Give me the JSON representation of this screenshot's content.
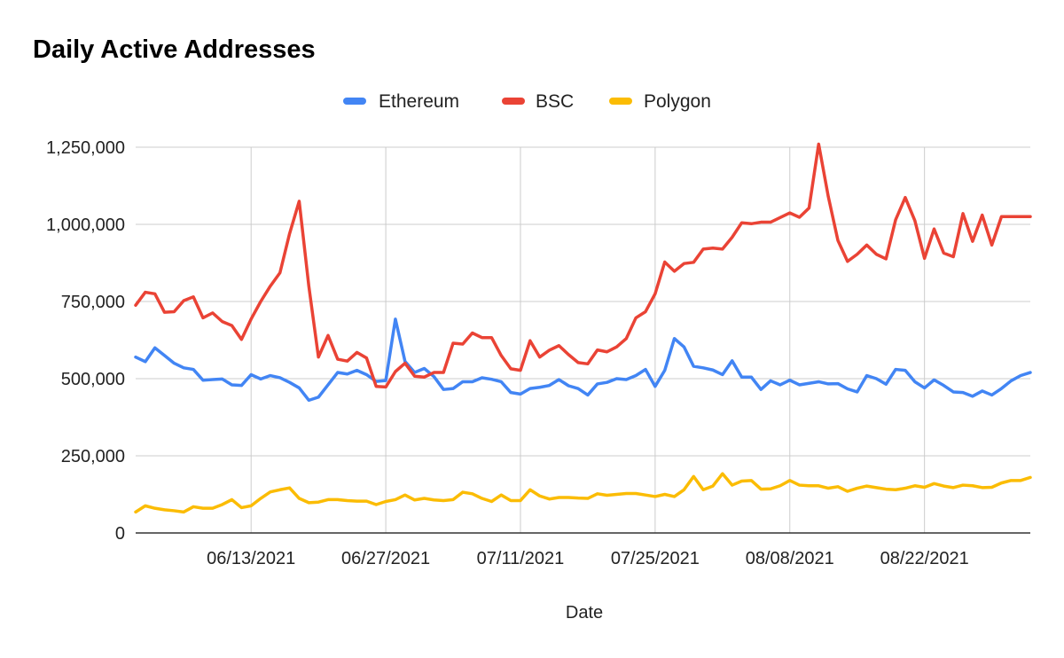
{
  "chart_data": {
    "type": "line",
    "title": "Daily Active Addresses",
    "xlabel": "Date",
    "ylabel": "",
    "ylim": [
      0,
      1250000
    ],
    "grid": true,
    "legend_position": "top-center",
    "x_start": "2021-06-01",
    "x_tick_labels": [
      "06/13/2021",
      "06/27/2021",
      "07/11/2021",
      "07/25/2021",
      "08/08/2021",
      "08/22/2021"
    ],
    "y_tick_labels": [
      "0",
      "250,000",
      "500,000",
      "750,000",
      "1,000,000",
      "1,250,000"
    ],
    "y_tick_values": [
      0,
      250000,
      500000,
      750000,
      1000000,
      1250000
    ],
    "colors": {
      "Ethereum": "#4285f4",
      "BSC": "#ea4335",
      "Polygon": "#fbbc04"
    },
    "series": [
      {
        "name": "Ethereum",
        "values": [
          570000,
          555000,
          600000,
          575000,
          550000,
          535000,
          530000,
          495000,
          497000,
          499000,
          480000,
          478000,
          513000,
          499000,
          510000,
          503000,
          488000,
          470000,
          430000,
          440000,
          480000,
          520000,
          515000,
          527000,
          513000,
          491000,
          494000,
          693000,
          556000,
          520000,
          533000,
          507000,
          465000,
          468000,
          490000,
          490000,
          503000,
          498000,
          490000,
          455000,
          450000,
          468000,
          472000,
          478000,
          497000,
          477000,
          468000,
          447000,
          483000,
          488000,
          500000,
          497000,
          510000,
          530000,
          475000,
          527000,
          630000,
          603000,
          540000,
          535000,
          528000,
          513000,
          558000,
          505000,
          505000,
          465000,
          493000,
          480000,
          495000,
          480000,
          485000,
          490000,
          483000,
          484000,
          467000,
          457000,
          510000,
          500000,
          482000,
          530000,
          527000,
          490000,
          470000,
          496000,
          478000,
          457000,
          455000,
          443000,
          460000,
          447000,
          468000,
          493000,
          510000,
          520000
        ]
      },
      {
        "name": "BSC",
        "values": [
          738000,
          780000,
          775000,
          715000,
          717000,
          753000,
          765000,
          697000,
          713000,
          685000,
          672000,
          627000,
          693000,
          750000,
          800000,
          843000,
          970000,
          1075000,
          800000,
          570000,
          640000,
          563000,
          557000,
          585000,
          567000,
          475000,
          473000,
          523000,
          550000,
          508000,
          505000,
          520000,
          520000,
          615000,
          612000,
          648000,
          633000,
          633000,
          575000,
          532000,
          527000,
          623000,
          570000,
          592000,
          607000,
          578000,
          552000,
          548000,
          593000,
          587000,
          603000,
          630000,
          697000,
          717000,
          775000,
          878000,
          848000,
          873000,
          877000,
          920000,
          923000,
          920000,
          958000,
          1005000,
          1002000,
          1007000,
          1007000,
          1022000,
          1037000,
          1023000,
          1053000,
          1260000,
          1090000,
          948000,
          880000,
          903000,
          933000,
          903000,
          888000,
          1015000,
          1087000,
          1012000,
          890000,
          985000,
          907000,
          895000,
          1035000,
          945000,
          1030000,
          933000,
          1025000,
          1025000,
          1025000,
          1025000
        ]
      },
      {
        "name": "Polygon",
        "values": [
          68000,
          88000,
          80000,
          75000,
          72000,
          68000,
          85000,
          80000,
          80000,
          92000,
          108000,
          82000,
          88000,
          112000,
          133000,
          140000,
          146000,
          112000,
          98000,
          100000,
          108000,
          108000,
          105000,
          103000,
          103000,
          92000,
          102000,
          108000,
          123000,
          107000,
          112000,
          107000,
          105000,
          108000,
          132000,
          127000,
          112000,
          102000,
          123000,
          105000,
          105000,
          140000,
          120000,
          110000,
          115000,
          115000,
          113000,
          112000,
          127000,
          122000,
          125000,
          128000,
          128000,
          123000,
          118000,
          125000,
          118000,
          140000,
          183000,
          140000,
          152000,
          192000,
          155000,
          168000,
          170000,
          142000,
          143000,
          153000,
          170000,
          155000,
          153000,
          153000,
          145000,
          150000,
          135000,
          145000,
          152000,
          147000,
          142000,
          140000,
          145000,
          153000,
          148000,
          160000,
          152000,
          147000,
          155000,
          153000,
          147000,
          148000,
          162000,
          170000,
          170000,
          180000
        ]
      }
    ]
  }
}
